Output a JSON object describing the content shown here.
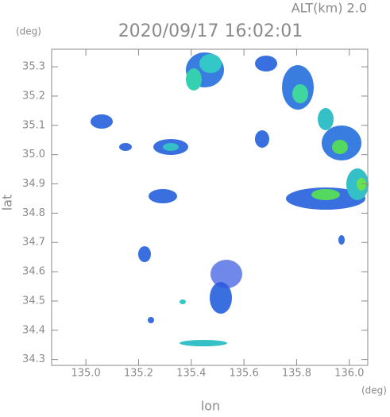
{
  "chart_data": {
    "type": "map",
    "title": "2020/09/17 16:02:01",
    "subtitle": "ALT(km) 2.0",
    "x_label": "lon",
    "y_label": "lat",
    "x_unit": "(deg)",
    "y_unit": "(deg)",
    "xlim": [
      134.87,
      136.07
    ],
    "ylim": [
      34.28,
      35.36
    ],
    "xticks": [
      {
        "value": 135,
        "label": "135.0"
      },
      {
        "value": 135.2,
        "label": "135.2"
      },
      {
        "value": 135.4,
        "label": "135.4"
      },
      {
        "value": 135.6,
        "label": "135.6"
      },
      {
        "value": 135.8,
        "label": "135.8"
      },
      {
        "value": 136,
        "label": "136.0"
      }
    ],
    "yticks": [
      34.3,
      34.4,
      34.5,
      34.6,
      34.7,
      34.8,
      34.9,
      {
        "value": 35,
        "label": "35.0"
      },
      35.1,
      35.2,
      35.3
    ]
  }
}
